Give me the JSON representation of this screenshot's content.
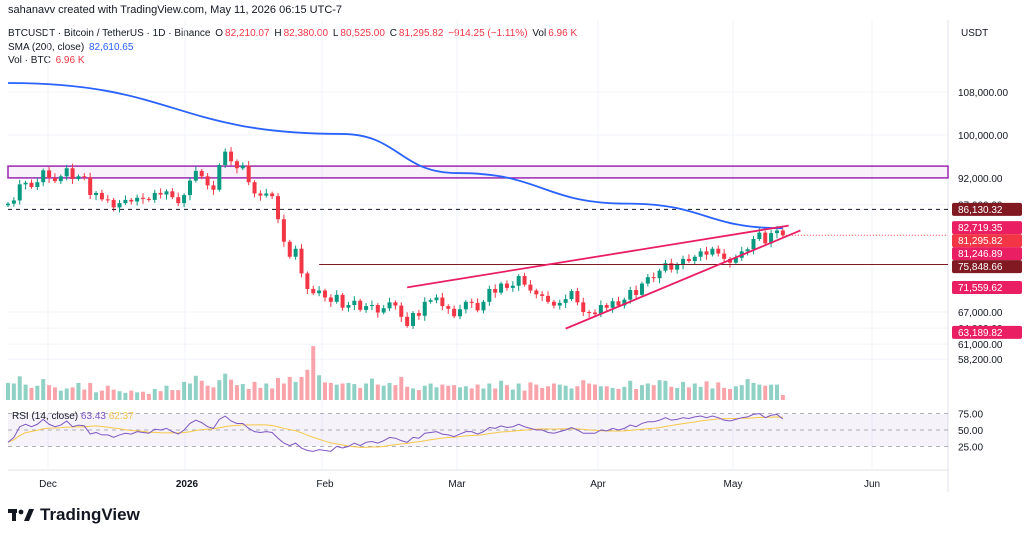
{
  "header": {
    "credit": "sahanavv created with TradingView.com, May 11, 2026 06:15 UTC-7"
  },
  "legend": {
    "symbol": "BTCUSDT · Bitcoin / TetherUS · 1D · Binance",
    "o_label": "O",
    "o": "82,210.07",
    "h_label": "H",
    "h": "82,380.00",
    "l_label": "L",
    "l": "80,525.00",
    "c_label": "C",
    "c": "81,295.82",
    "change": "−914.25 (−1.11%)",
    "vol_label": "Vol",
    "vol": "6.96 K",
    "sma_label": "SMA (200, close)",
    "sma": "82,610.65",
    "vol_btc_label": "Vol · BTC",
    "vol_btc": "6.96 K"
  },
  "rsi_legend": {
    "label": "RSI (14, close)",
    "value": "63.43",
    "ma": "62.37"
  },
  "footer": {
    "brand": "TradingView"
  },
  "colors": {
    "up": "#089981",
    "down": "#f23645",
    "sma": "#2962ff",
    "wedge": "#e91e63",
    "box": "#9c27b0",
    "rsi": "#7e57c2",
    "rsi_ma": "#f7c948",
    "grid": "#f0f3fa"
  },
  "chart_data": {
    "type": "candlestick",
    "currency": "USDT",
    "y_ticks": [
      "108,000.00",
      "100,000.00",
      "92,000.00",
      "87,000.00",
      "67,000.00",
      "64,000.00",
      "61,000.00",
      "58,200.00"
    ],
    "price_labels": [
      {
        "text": "86,130.32",
        "value": 86130.32,
        "color": "#801922"
      },
      {
        "text": "82,719.35",
        "value": 82719.35,
        "color": "#e91e63"
      },
      {
        "text": "81,295.82",
        "value": 81295.82,
        "color": "#f23645"
      },
      {
        "text": "81,246.89",
        "value": 81246.89,
        "color": "#e91e63"
      },
      {
        "text": "75,848.66",
        "value": 75848.66,
        "color": "#801922"
      },
      {
        "text": "71,559.62",
        "value": 71559.62,
        "color": "#e91e63"
      },
      {
        "text": "63,189.82",
        "value": 63189.82,
        "color": "#e91e63"
      }
    ],
    "x_ticks": [
      "Dec",
      "2026",
      "Feb",
      "Mar",
      "Apr",
      "May",
      "Jun"
    ],
    "resistance_zone": [
      92000,
      94200
    ],
    "horizontal_levels": [
      86130.32,
      75848.66
    ],
    "rsi_ticks": [
      "75.00",
      "50.00",
      "25.00"
    ],
    "rsi_last": 63.43,
    "rsi_ma_last": 62.37,
    "close": [
      87200,
      87800,
      90800,
      91100,
      90300,
      91200,
      93400,
      92000,
      91400,
      92300,
      93800,
      91800,
      92300,
      92100,
      88800,
      89200,
      88000,
      87900,
      86500,
      87300,
      87900,
      87600,
      88300,
      88100,
      87900,
      89200,
      88900,
      89500,
      88400,
      87300,
      88800,
      91500,
      93300,
      92300,
      90600,
      89800,
      94400,
      96900,
      95100,
      93800,
      94300,
      91200,
      89100,
      88700,
      89100,
      88600,
      84300,
      80100,
      77300,
      78800,
      74200,
      71300,
      70500,
      71000,
      69700,
      68900,
      70200,
      67800,
      68300,
      69100,
      67400,
      68100,
      68300,
      66900,
      67700,
      68800,
      68200,
      66100,
      64400,
      66800,
      66300,
      68900,
      69200,
      69700,
      68100,
      67600,
      66200,
      67500,
      68900,
      68700,
      67300,
      68900,
      71300,
      70600,
      72300,
      71500,
      71900,
      73700,
      72100,
      71000,
      70300,
      70000,
      68900,
      68200,
      68700,
      69400,
      70900,
      68800,
      67000,
      66900,
      66600,
      68300,
      67800,
      69000,
      68200,
      69300,
      71100,
      70200,
      72300,
      73500,
      73300,
      74700,
      76100,
      74900,
      75900,
      76900,
      76500,
      77300,
      78300,
      77700,
      78800,
      77900,
      76900,
      76200,
      77100,
      78300,
      78700,
      80600,
      81800,
      79800,
      81700,
      82200,
      81300
    ],
    "sma": [
      109700,
      100200,
      92900,
      87200,
      82610.65
    ],
    "rsi": [
      35,
      41,
      54,
      57,
      54,
      57,
      63,
      57,
      54,
      56,
      61,
      54,
      56,
      55,
      45,
      47,
      44,
      44,
      41,
      44,
      46,
      45,
      48,
      47,
      46,
      51,
      50,
      52,
      48,
      45,
      50,
      58,
      62,
      59,
      54,
      52,
      63,
      67,
      61,
      58,
      58,
      52,
      48,
      47,
      48,
      47,
      40,
      34,
      31,
      34,
      28,
      25,
      24,
      26,
      25,
      24,
      30,
      28,
      30,
      34,
      31,
      35,
      36,
      34,
      37,
      41,
      40,
      37,
      35,
      41,
      40,
      46,
      47,
      48,
      45,
      44,
      42,
      45,
      48,
      48,
      45,
      48,
      53,
      52,
      55,
      53,
      54,
      57,
      54,
      52,
      50,
      50,
      47,
      46,
      48,
      50,
      53,
      50,
      46,
      46,
      46,
      50,
      49,
      52,
      50,
      52,
      56,
      54,
      58,
      60,
      60,
      62,
      65,
      62,
      63,
      65,
      64,
      66,
      67,
      65,
      67,
      65,
      62,
      61,
      63,
      65,
      66,
      69,
      70,
      65,
      68,
      69,
      63.43
    ],
    "volume": [
      31,
      30,
      43,
      28,
      22,
      26,
      38,
      27,
      23,
      17,
      21,
      23,
      31,
      19,
      31,
      14,
      17,
      26,
      19,
      16,
      13,
      17,
      14,
      15,
      11,
      20,
      16,
      26,
      18,
      18,
      33,
      30,
      44,
      35,
      26,
      23,
      36,
      48,
      37,
      27,
      29,
      20,
      33,
      22,
      30,
      21,
      40,
      30,
      42,
      33,
      42,
      55,
      98,
      45,
      32,
      31,
      28,
      30,
      31,
      29,
      22,
      30,
      39,
      28,
      26,
      31,
      27,
      42,
      24,
      21,
      18,
      26,
      30,
      23,
      28,
      26,
      27,
      23,
      25,
      21,
      28,
      21,
      30,
      21,
      35,
      27,
      19,
      30,
      17,
      32,
      28,
      22,
      25,
      30,
      28,
      26,
      21,
      25,
      36,
      30,
      28,
      25,
      25,
      22,
      20,
      24,
      35,
      20,
      27,
      30,
      27,
      36,
      35,
      24,
      22,
      33,
      23,
      30,
      24,
      34,
      21,
      32,
      22,
      20,
      25,
      27,
      38,
      31,
      28,
      26,
      28,
      28,
      9
    ]
  }
}
